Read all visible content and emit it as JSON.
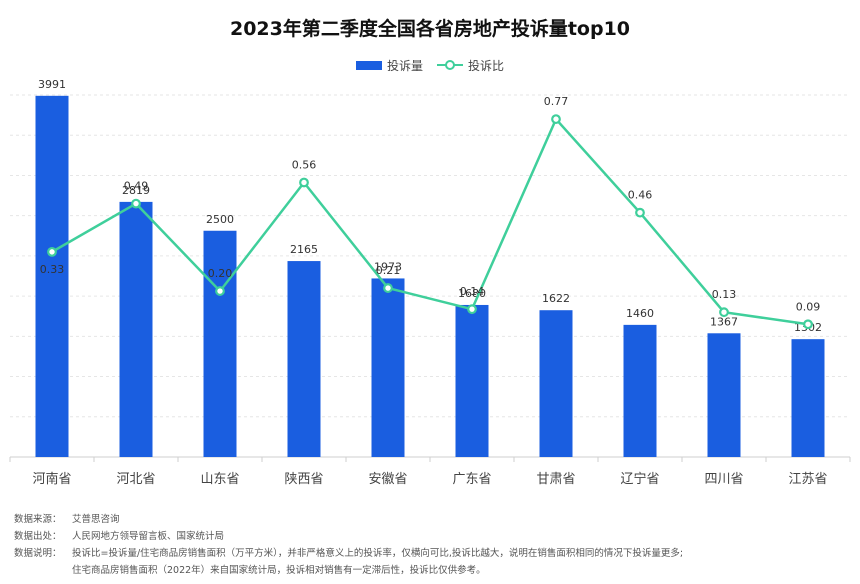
{
  "chart_data": {
    "type": "bar",
    "title": "2023年第二季度全国各省房地产投诉量top10",
    "categories": [
      "河南省",
      "河北省",
      "山东省",
      "陕西省",
      "安徽省",
      "广东省",
      "甘肃省",
      "辽宁省",
      "四川省",
      "江苏省"
    ],
    "series": [
      {
        "name": "投诉量",
        "type": "bar",
        "color": "#1a5ee0",
        "values": [
          3991,
          2819,
          2500,
          2165,
          1973,
          1680,
          1622,
          1460,
          1367,
          1302
        ]
      },
      {
        "name": "投诉比",
        "type": "line",
        "color": "#3fcf9b",
        "values": [
          0.33,
          0.49,
          0.2,
          0.56,
          0.21,
          0.14,
          0.77,
          0.46,
          0.13,
          0.09
        ]
      }
    ],
    "ylim": [
      0,
      4000
    ],
    "y2lim": [
      -0.35,
      0.85
    ],
    "grid": true,
    "legend": "top-center"
  },
  "notes": {
    "source_label": "数据来源：",
    "source_text": "艾普思咨询",
    "origin_label": "数据出处：",
    "origin_text": "人民网地方领导留言板、国家统计局",
    "explain_label": "数据说明：",
    "explain_text_1": "投诉比=投诉量/住宅商品房销售面积（万平方米），并非严格意义上的投诉率，仅横向可比,投诉比越大，说明在销售面积相同的情况下投诉量更多;",
    "explain_text_2": "住宅商品房销售面积（2022年）来自国家统计局，投诉相对销售有一定滞后性，投诉比仅供参考。"
  }
}
